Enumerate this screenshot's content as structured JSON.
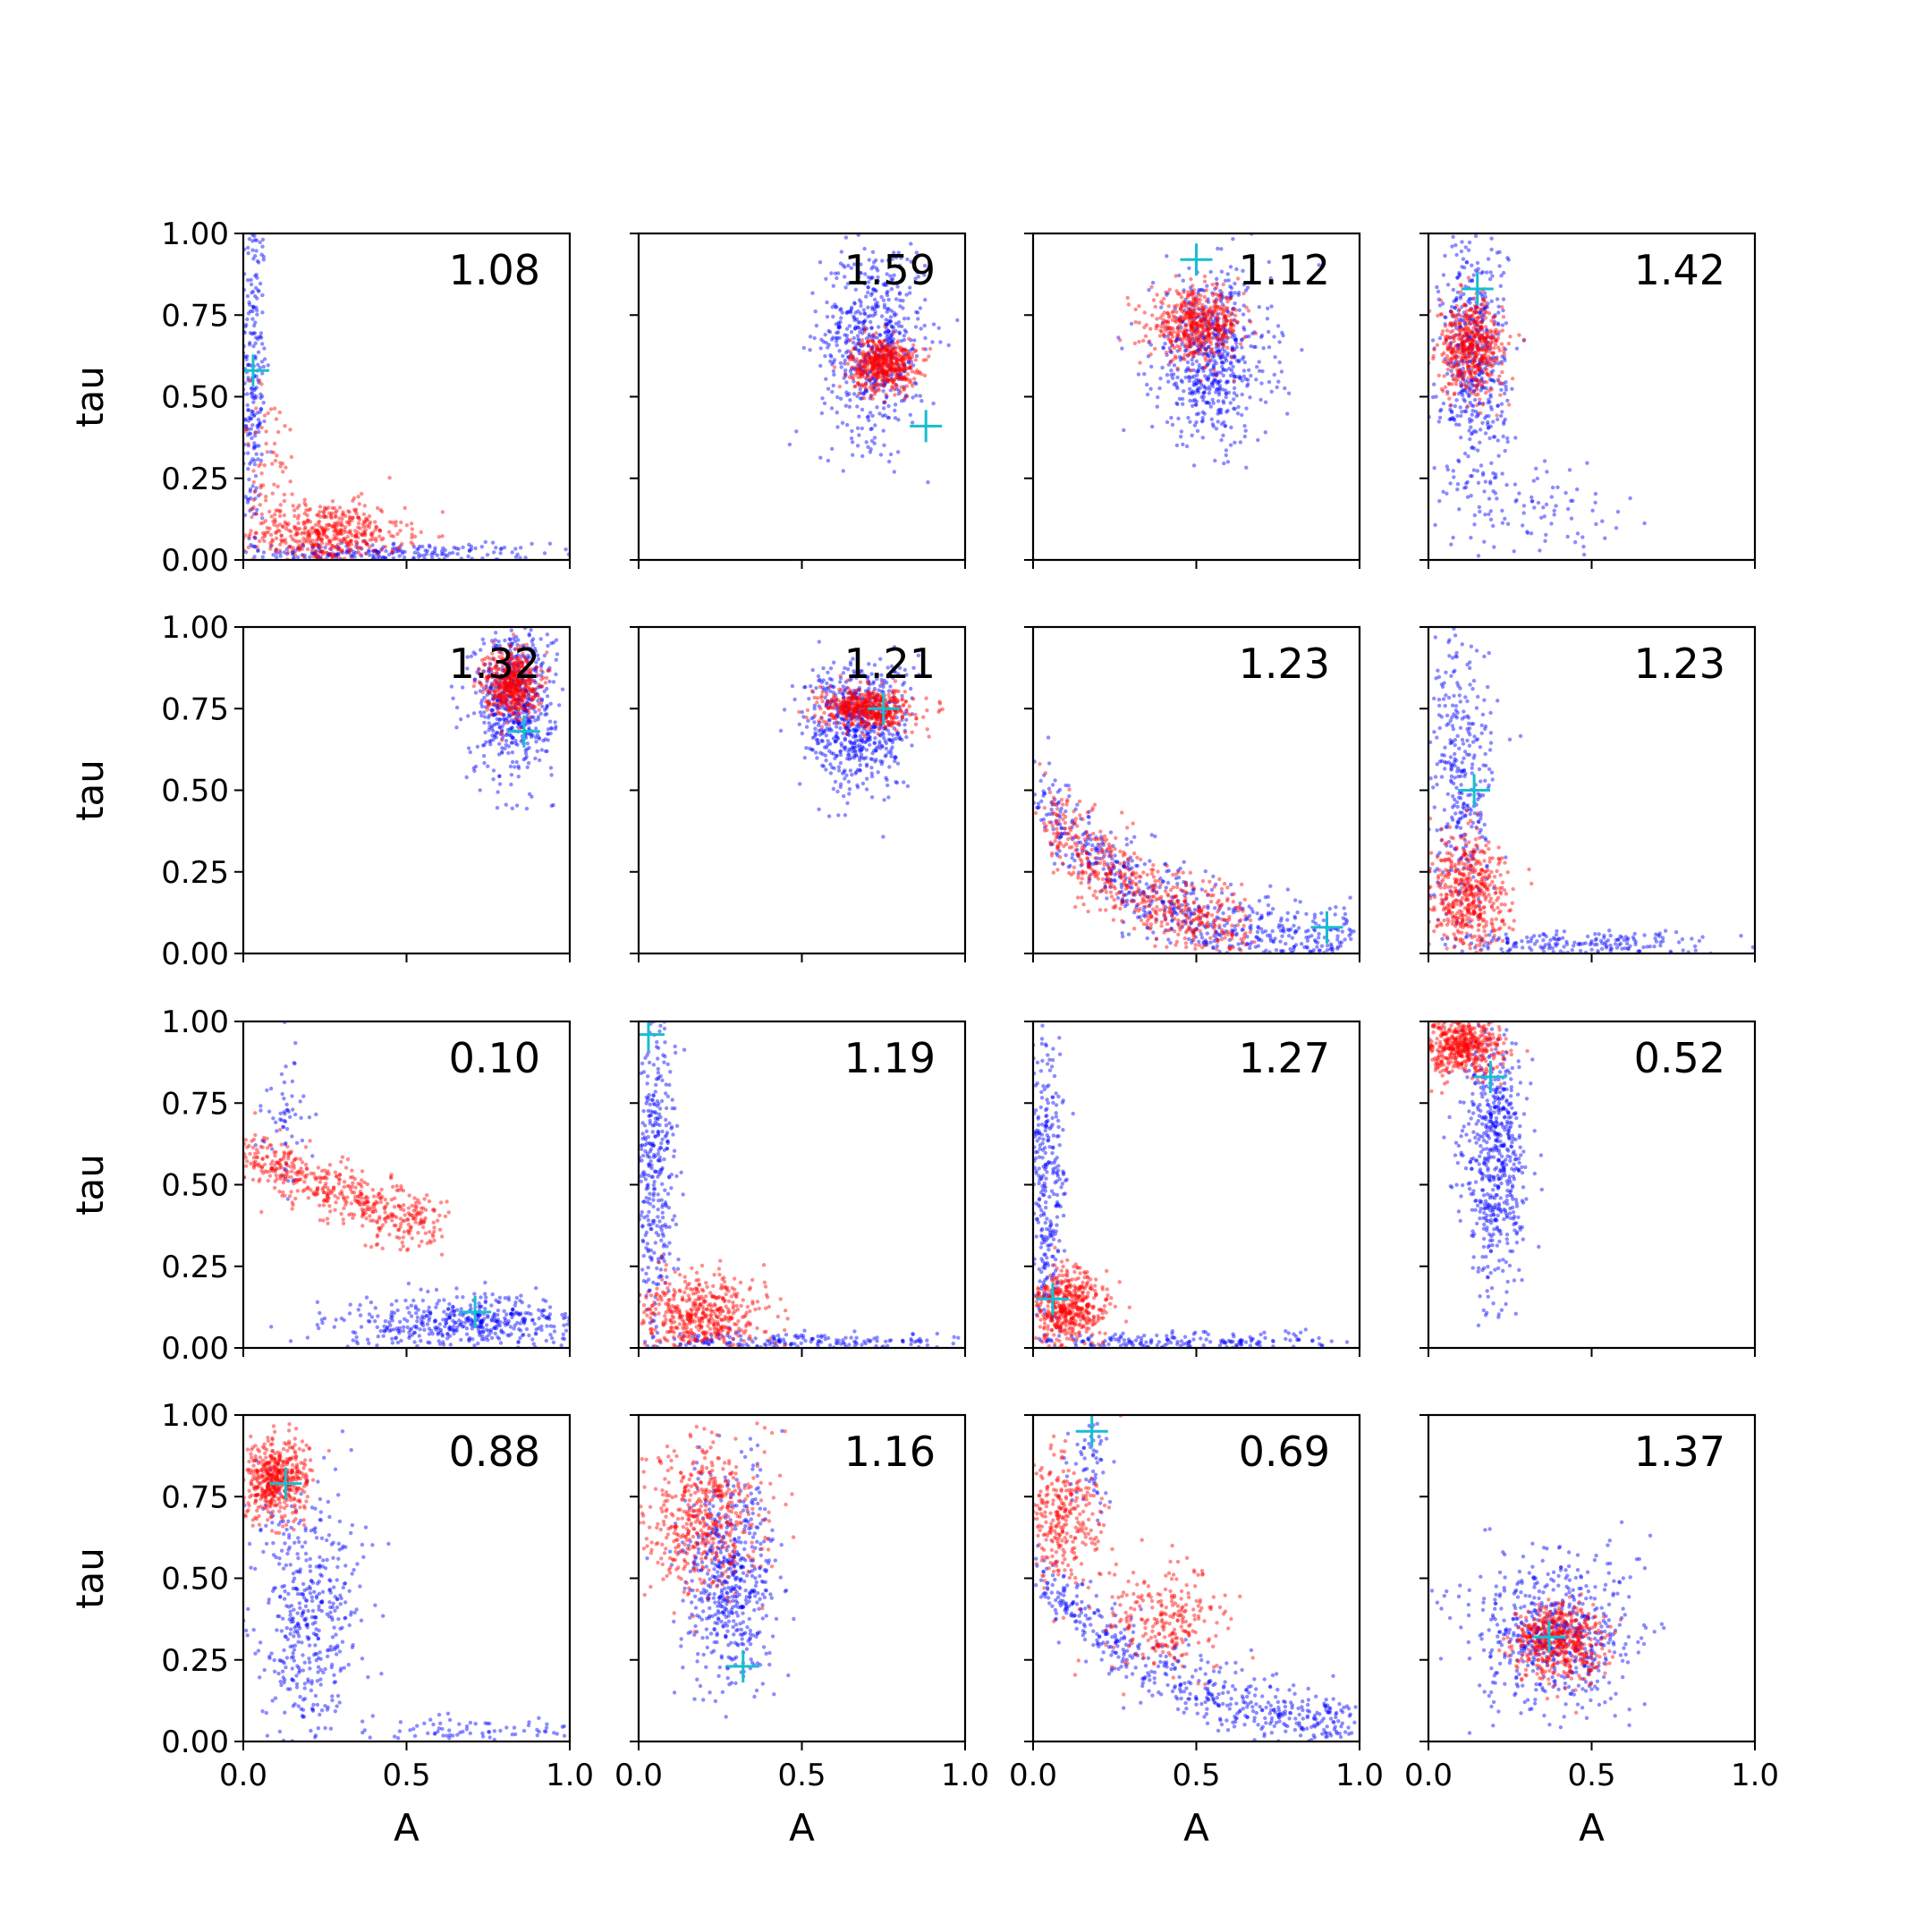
{
  "figure": {
    "xlabel": "A",
    "ylabel": "tau",
    "xticks": [
      "0.0",
      "0.5",
      "1.0"
    ],
    "yticks": [
      "0.00",
      "0.25",
      "0.50",
      "0.75",
      "1.00"
    ]
  },
  "chart_data": {
    "type": "scatter",
    "grid": false,
    "rows": 4,
    "cols": 4,
    "xlim": [
      0,
      1
    ],
    "ylim": [
      0,
      1
    ],
    "colors": {
      "blue": "#0000ff",
      "red": "#ff0000",
      "marker": "#17becf"
    },
    "panels": [
      {
        "value": "1.08",
        "marker": [
          0.03,
          0.58
        ],
        "blue": [
          {
            "type": "gauss",
            "cx": 0.03,
            "cy": 0.55,
            "sx": 0.02,
            "sy": 0.3,
            "n": 250
          },
          {
            "type": "gauss",
            "cx": 0.4,
            "cy": 0.02,
            "sx": 0.25,
            "sy": 0.015,
            "n": 250
          }
        ],
        "red": [
          {
            "type": "gauss",
            "cx": 0.25,
            "cy": 0.08,
            "sx": 0.12,
            "sy": 0.05,
            "n": 500
          },
          {
            "type": "gauss",
            "cx": 0.08,
            "cy": 0.3,
            "sx": 0.05,
            "sy": 0.12,
            "n": 60
          }
        ]
      },
      {
        "value": "1.59",
        "marker": [
          0.88,
          0.41
        ],
        "blue": [
          {
            "type": "gauss",
            "cx": 0.72,
            "cy": 0.67,
            "sx": 0.08,
            "sy": 0.15,
            "n": 600
          }
        ],
        "red": [
          {
            "type": "gauss",
            "cx": 0.75,
            "cy": 0.6,
            "sx": 0.05,
            "sy": 0.04,
            "n": 500
          }
        ]
      },
      {
        "value": "1.12",
        "marker": [
          0.5,
          0.92
        ],
        "blue": [
          {
            "type": "gauss",
            "cx": 0.55,
            "cy": 0.62,
            "sx": 0.09,
            "sy": 0.13,
            "n": 600
          }
        ],
        "red": [
          {
            "type": "gauss",
            "cx": 0.5,
            "cy": 0.72,
            "sx": 0.07,
            "sy": 0.05,
            "n": 500
          }
        ]
      },
      {
        "value": "1.42",
        "marker": [
          0.15,
          0.83
        ],
        "blue": [
          {
            "type": "gauss",
            "cx": 0.14,
            "cy": 0.6,
            "sx": 0.05,
            "sy": 0.2,
            "n": 500
          },
          {
            "type": "gauss",
            "cx": 0.35,
            "cy": 0.15,
            "sx": 0.15,
            "sy": 0.07,
            "n": 80
          }
        ],
        "red": [
          {
            "type": "gauss",
            "cx": 0.13,
            "cy": 0.65,
            "sx": 0.05,
            "sy": 0.07,
            "n": 500
          }
        ]
      },
      {
        "value": "1.32",
        "marker": [
          0.86,
          0.68
        ],
        "blue": [
          {
            "type": "gauss",
            "cx": 0.83,
            "cy": 0.78,
            "sx": 0.06,
            "sy": 0.12,
            "n": 600
          }
        ],
        "red": [
          {
            "type": "gauss",
            "cx": 0.82,
            "cy": 0.83,
            "sx": 0.04,
            "sy": 0.05,
            "n": 500
          }
        ]
      },
      {
        "value": "1.21",
        "marker": [
          0.75,
          0.75
        ],
        "blue": [
          {
            "type": "gauss",
            "cx": 0.67,
            "cy": 0.7,
            "sx": 0.08,
            "sy": 0.1,
            "n": 600
          }
        ],
        "red": [
          {
            "type": "gauss",
            "cx": 0.7,
            "cy": 0.75,
            "sx": 0.07,
            "sy": 0.03,
            "n": 500
          }
        ]
      },
      {
        "value": "1.23",
        "marker": [
          0.9,
          0.08
        ],
        "blue": [
          {
            "type": "curve",
            "x0": 0.0,
            "x1": 0.98,
            "a": 0.55,
            "k": 3.2,
            "s": 0.06,
            "n": 700
          }
        ],
        "red": [
          {
            "type": "curve",
            "x0": 0.05,
            "x1": 0.65,
            "a": 0.5,
            "k": 3.2,
            "s": 0.07,
            "n": 550
          }
        ]
      },
      {
        "value": "1.23",
        "marker": [
          0.14,
          0.5
        ],
        "blue": [
          {
            "type": "gauss",
            "cx": 0.09,
            "cy": 0.55,
            "sx": 0.05,
            "sy": 0.25,
            "n": 350
          },
          {
            "type": "gauss",
            "cx": 0.45,
            "cy": 0.03,
            "sx": 0.2,
            "sy": 0.02,
            "n": 200
          }
        ],
        "red": [
          {
            "type": "gauss",
            "cx": 0.12,
            "cy": 0.18,
            "sx": 0.06,
            "sy": 0.09,
            "n": 500
          }
        ]
      },
      {
        "value": "0.10",
        "marker": [
          0.71,
          0.11
        ],
        "blue": [
          {
            "type": "gauss",
            "cx": 0.7,
            "cy": 0.08,
            "sx": 0.2,
            "sy": 0.04,
            "n": 500
          },
          {
            "type": "gauss",
            "cx": 0.13,
            "cy": 0.7,
            "sx": 0.04,
            "sy": 0.12,
            "n": 60
          }
        ],
        "red": [
          {
            "type": "curve",
            "x0": 0.0,
            "x1": 0.6,
            "a": 0.6,
            "k": 0.8,
            "s": 0.045,
            "n": 500
          }
        ]
      },
      {
        "value": "1.19",
        "marker": [
          0.03,
          0.96
        ],
        "blue": [
          {
            "type": "gauss",
            "cx": 0.05,
            "cy": 0.55,
            "sx": 0.03,
            "sy": 0.25,
            "n": 350
          },
          {
            "type": "gauss",
            "cx": 0.45,
            "cy": 0.02,
            "sx": 0.25,
            "sy": 0.015,
            "n": 200
          }
        ],
        "red": [
          {
            "type": "gauss",
            "cx": 0.18,
            "cy": 0.1,
            "sx": 0.1,
            "sy": 0.06,
            "n": 500
          }
        ]
      },
      {
        "value": "1.27",
        "marker": [
          0.06,
          0.15
        ],
        "blue": [
          {
            "type": "gauss",
            "cx": 0.04,
            "cy": 0.5,
            "sx": 0.03,
            "sy": 0.25,
            "n": 350
          },
          {
            "type": "gauss",
            "cx": 0.45,
            "cy": 0.02,
            "sx": 0.25,
            "sy": 0.015,
            "n": 200
          }
        ],
        "red": [
          {
            "type": "gauss",
            "cx": 0.1,
            "cy": 0.12,
            "sx": 0.06,
            "sy": 0.06,
            "n": 500
          }
        ]
      },
      {
        "value": "0.52",
        "marker": [
          0.19,
          0.83
        ],
        "blue": [
          {
            "type": "gauss",
            "cx": 0.2,
            "cy": 0.6,
            "sx": 0.05,
            "sy": 0.2,
            "n": 600
          }
        ],
        "red": [
          {
            "type": "gauss",
            "cx": 0.1,
            "cy": 0.93,
            "sx": 0.06,
            "sy": 0.05,
            "n": 500
          }
        ]
      },
      {
        "value": "0.88",
        "marker": [
          0.13,
          0.79
        ],
        "blue": [
          {
            "type": "gauss",
            "cx": 0.2,
            "cy": 0.4,
            "sx": 0.08,
            "sy": 0.2,
            "n": 450
          },
          {
            "type": "gauss",
            "cx": 0.7,
            "cy": 0.03,
            "sx": 0.15,
            "sy": 0.02,
            "n": 80
          }
        ],
        "red": [
          {
            "type": "gauss",
            "cx": 0.1,
            "cy": 0.8,
            "sx": 0.05,
            "sy": 0.06,
            "n": 500
          }
        ]
      },
      {
        "value": "1.16",
        "marker": [
          0.32,
          0.23
        ],
        "blue": [
          {
            "type": "gauss",
            "cx": 0.28,
            "cy": 0.5,
            "sx": 0.07,
            "sy": 0.17,
            "n": 550
          }
        ],
        "red": [
          {
            "type": "gauss",
            "cx": 0.2,
            "cy": 0.7,
            "sx": 0.09,
            "sy": 0.12,
            "n": 500
          }
        ]
      },
      {
        "value": "0.69",
        "marker": [
          0.18,
          0.95
        ],
        "blue": [
          {
            "type": "curve",
            "x0": 0.0,
            "x1": 0.98,
            "a": 0.55,
            "k": 2.5,
            "s": 0.05,
            "n": 550
          },
          {
            "type": "gauss",
            "cx": 0.17,
            "cy": 0.85,
            "sx": 0.03,
            "sy": 0.08,
            "n": 60
          }
        ],
        "red": [
          {
            "type": "gauss",
            "cx": 0.08,
            "cy": 0.68,
            "sx": 0.06,
            "sy": 0.1,
            "n": 300
          },
          {
            "type": "gauss",
            "cx": 0.4,
            "cy": 0.38,
            "sx": 0.1,
            "sy": 0.08,
            "n": 250
          }
        ]
      },
      {
        "value": "1.37",
        "marker": [
          0.37,
          0.32
        ],
        "blue": [
          {
            "type": "gauss",
            "cx": 0.38,
            "cy": 0.33,
            "sx": 0.12,
            "sy": 0.12,
            "n": 600
          }
        ],
        "red": [
          {
            "type": "gauss",
            "cx": 0.4,
            "cy": 0.3,
            "sx": 0.07,
            "sy": 0.06,
            "n": 500
          }
        ]
      }
    ]
  }
}
